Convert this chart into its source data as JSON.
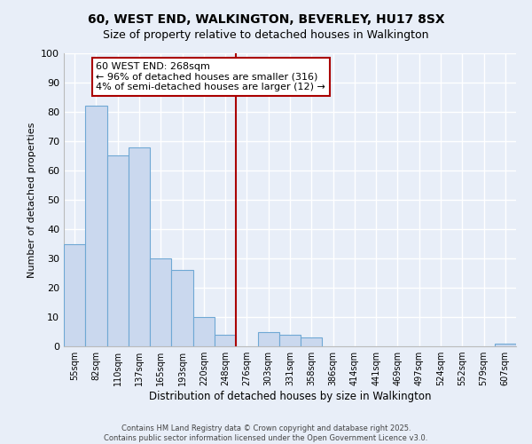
{
  "title": "60, WEST END, WALKINGTON, BEVERLEY, HU17 8SX",
  "subtitle": "Size of property relative to detached houses in Walkington",
  "xlabel": "Distribution of detached houses by size in Walkington",
  "ylabel": "Number of detached properties",
  "bar_labels": [
    "55sqm",
    "82sqm",
    "110sqm",
    "137sqm",
    "165sqm",
    "193sqm",
    "220sqm",
    "248sqm",
    "276sqm",
    "303sqm",
    "331sqm",
    "358sqm",
    "386sqm",
    "414sqm",
    "441sqm",
    "469sqm",
    "497sqm",
    "524sqm",
    "552sqm",
    "579sqm",
    "607sqm"
  ],
  "bar_values": [
    35,
    82,
    65,
    68,
    30,
    26,
    10,
    4,
    0,
    5,
    4,
    3,
    0,
    0,
    0,
    0,
    0,
    0,
    0,
    0,
    1
  ],
  "bar_color": "#cad8ee",
  "bar_edge_color": "#6fa8d4",
  "vline_x_idx": 7.5,
  "vline_color": "#aa0000",
  "annotation_title": "60 WEST END: 268sqm",
  "annotation_line1": "← 96% of detached houses are smaller (316)",
  "annotation_line2": "4% of semi-detached houses are larger (12) →",
  "annotation_box_color": "#ffffff",
  "annotation_box_edge": "#aa0000",
  "ylim": [
    0,
    100
  ],
  "yticks": [
    0,
    10,
    20,
    30,
    40,
    50,
    60,
    70,
    80,
    90,
    100
  ],
  "footer1": "Contains HM Land Registry data © Crown copyright and database right 2025.",
  "footer2": "Contains public sector information licensed under the Open Government Licence v3.0.",
  "bg_color": "#e8eef8",
  "grid_color": "#ffffff",
  "title_fontsize": 10,
  "subtitle_fontsize": 9
}
